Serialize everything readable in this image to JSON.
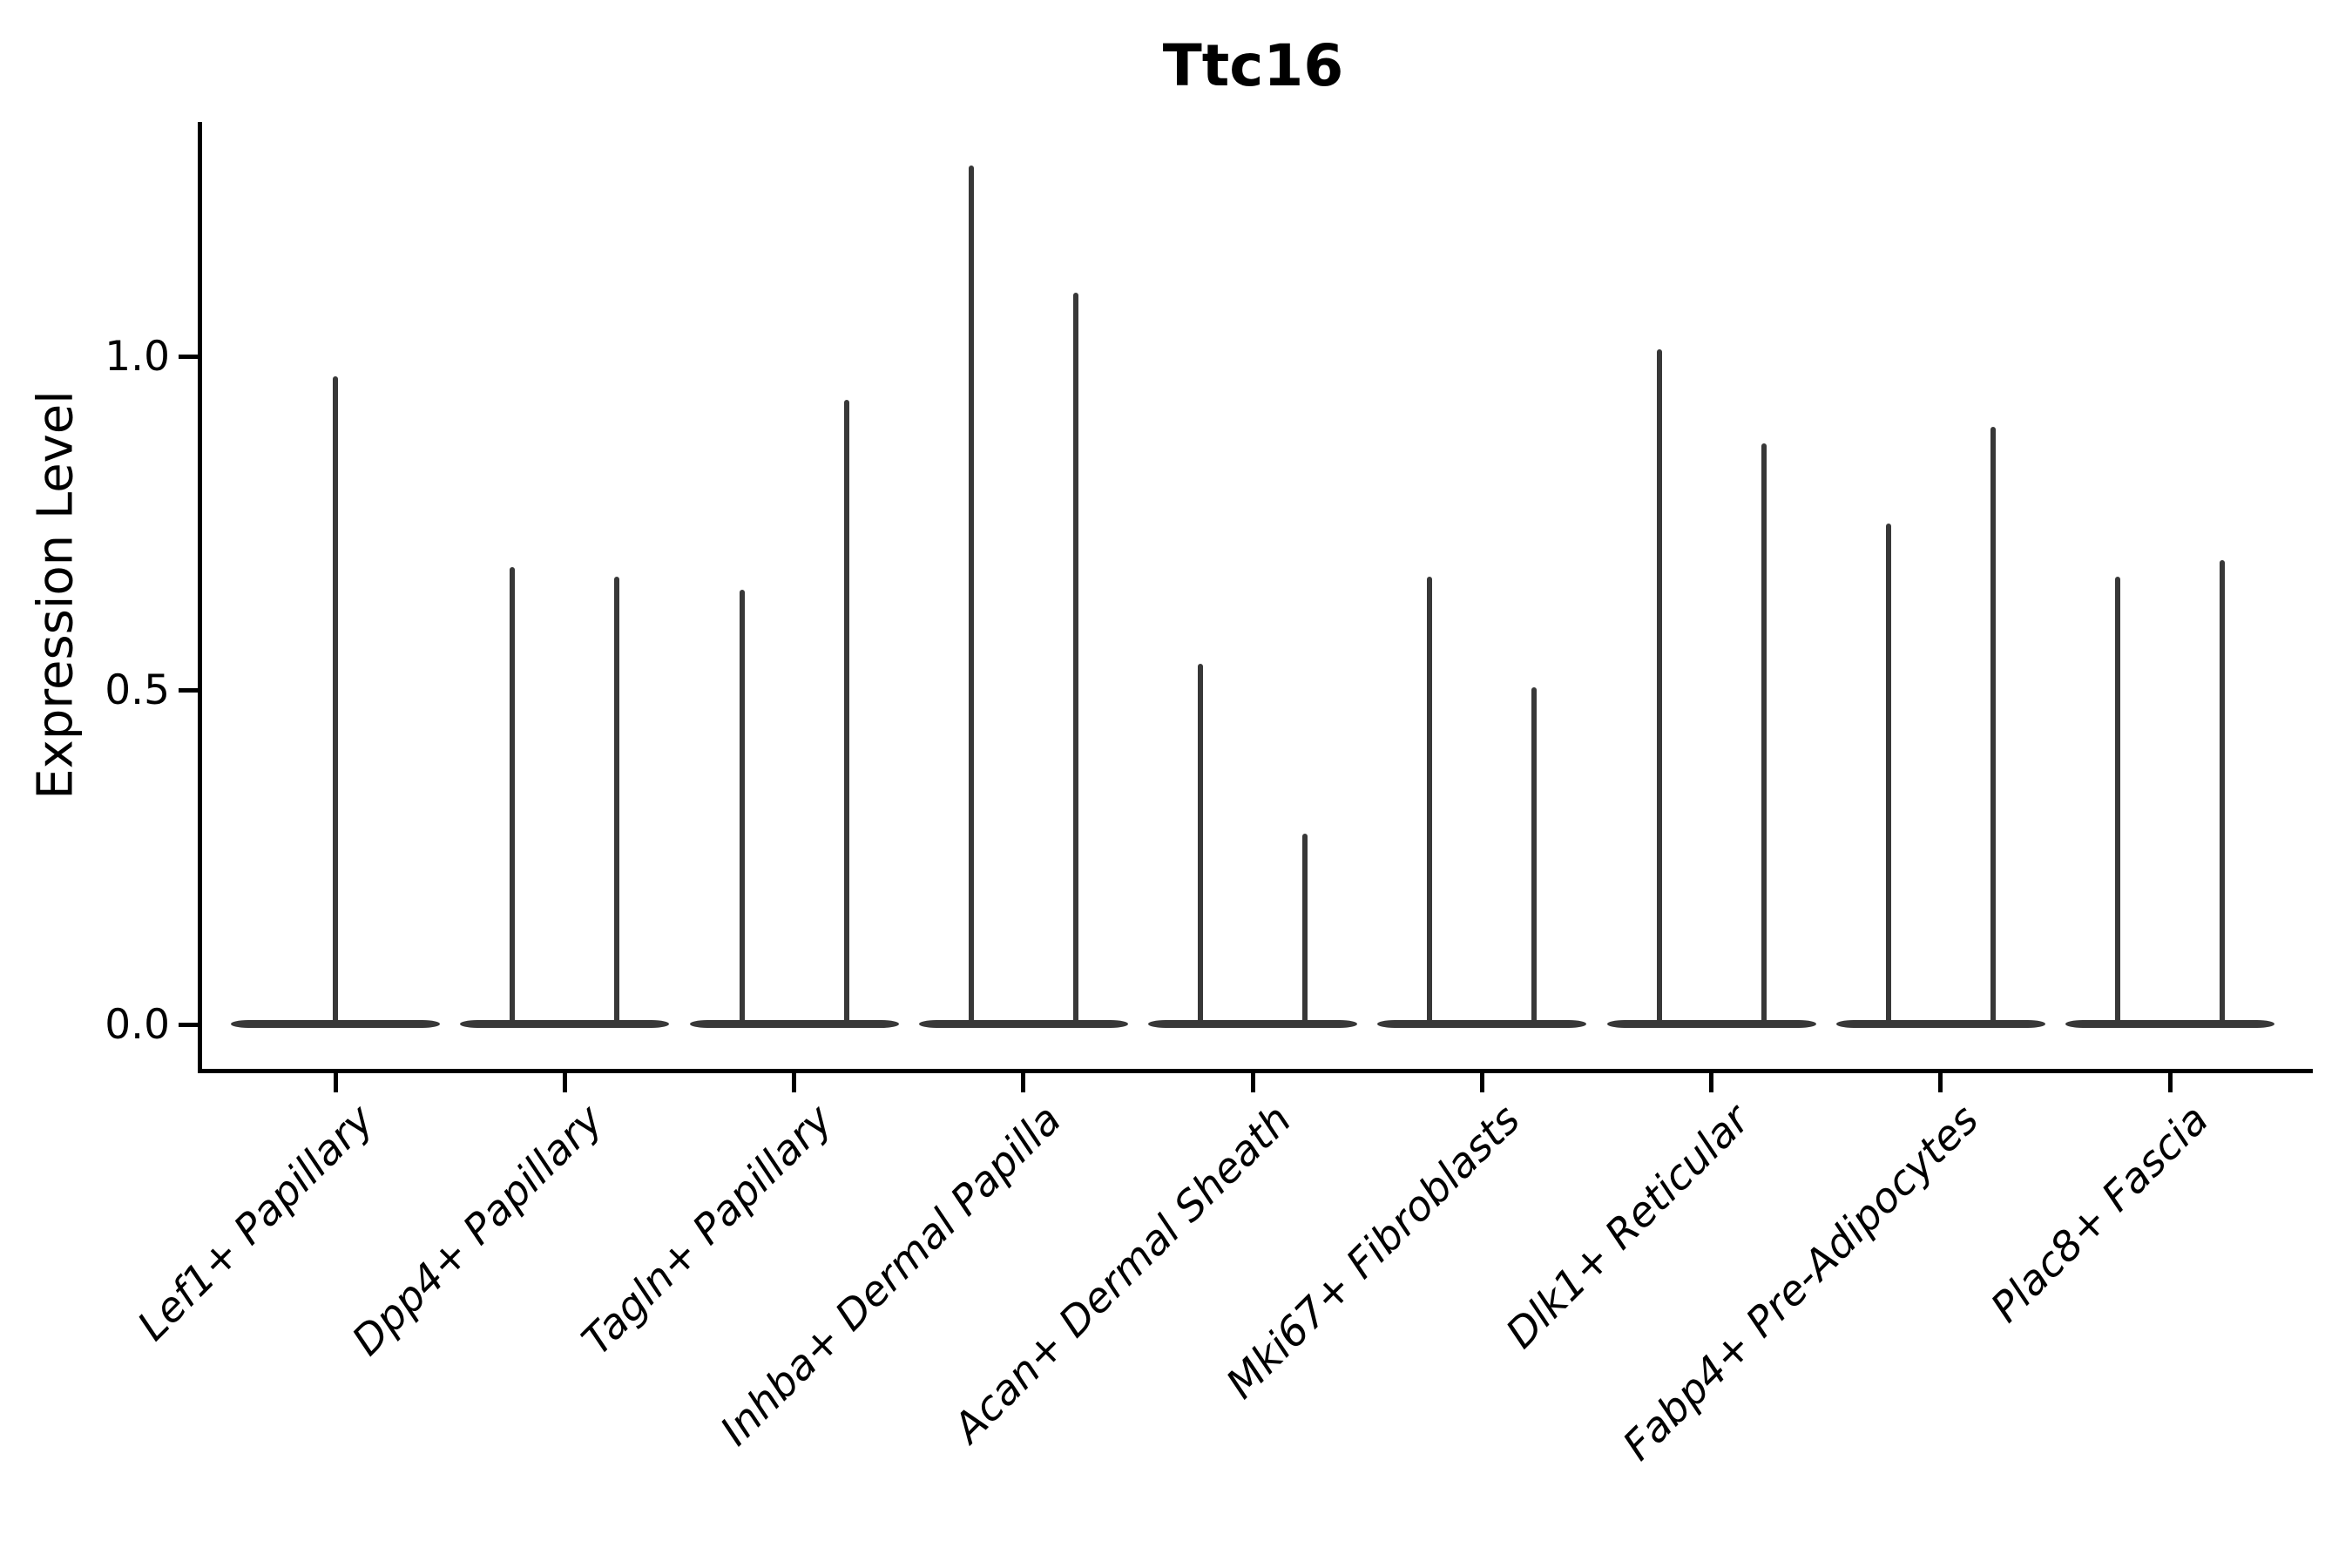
{
  "figure": {
    "title": "Ttc16",
    "background": "#ffffff"
  },
  "chart_data": {
    "type": "violin",
    "title": "Ttc16",
    "xlabel": "",
    "ylabel": "Expression Level",
    "yticks": [
      "0.0",
      "0.5",
      "1.0"
    ],
    "ytick_values": [
      0.0,
      0.5,
      1.0
    ],
    "ylim": [
      -0.07,
      1.35
    ],
    "grid": false,
    "legend": "none",
    "style_note": "Each violin is an extremely flat horizontal density at expression 0 with thin vertical density spikes reaching the maximum expression values; outlines dark gray on white; only left and bottom spines drawn; x tick labels italic, rotated 45 degrees",
    "categories": [
      "Lef1+ Papillary",
      "Dpp4+ Papillary",
      "Tagln+ Papillary",
      "Inhba+ Dermal Papilla",
      "Acan+ Dermal Sheath",
      "Mki67+ Fibroblasts",
      "Dlk1+ Reticular",
      "Fabp4+ Pre-Adipocytes",
      "Plac8+ Fascia"
    ],
    "violins": [
      {
        "category": "Lef1+ Papillary",
        "baseline_value": 0.0,
        "spike_maxima": [
          0.97
        ]
      },
      {
        "category": "Dpp4+ Papillary",
        "baseline_value": 0.0,
        "spike_maxima": [
          0.685,
          0.67
        ]
      },
      {
        "category": "Tagln+ Papillary",
        "baseline_value": 0.0,
        "spike_maxima": [
          0.65,
          0.935
        ]
      },
      {
        "category": "Inhba+ Dermal Papilla",
        "baseline_value": 0.0,
        "spike_maxima": [
          1.285,
          1.095
        ]
      },
      {
        "category": "Acan+ Dermal Sheath",
        "baseline_value": 0.0,
        "spike_maxima": [
          0.54,
          0.285
        ]
      },
      {
        "category": "Mki67+ Fibroblasts",
        "baseline_value": 0.0,
        "spike_maxima": [
          0.67,
          0.505
        ]
      },
      {
        "category": "Dlk1+ Reticular",
        "baseline_value": 0.0,
        "spike_maxima": [
          1.01,
          0.87
        ]
      },
      {
        "category": "Fabp4+ Pre-Adipocytes",
        "baseline_value": 0.0,
        "spike_maxima": [
          0.75,
          0.895
        ]
      },
      {
        "category": "Plac8+ Fascia",
        "baseline_value": 0.0,
        "spike_maxima": [
          0.67,
          0.695
        ]
      }
    ],
    "colors": {
      "violin_stroke": "#383838",
      "axis": "#000000",
      "text": "#000000",
      "background": "#ffffff"
    }
  }
}
